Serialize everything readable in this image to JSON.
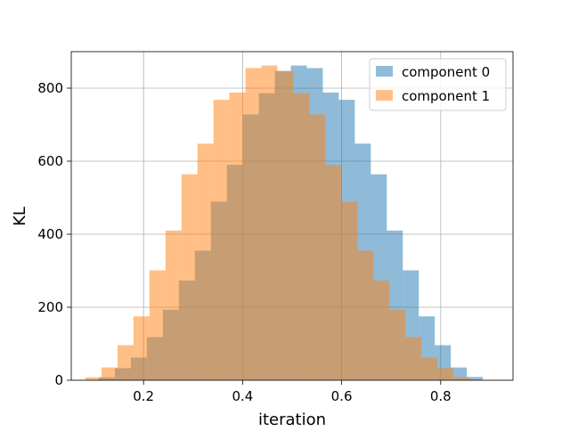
{
  "chart_data": {
    "type": "bar",
    "title": "",
    "xlabel": "iteration",
    "ylabel": "KL",
    "xlim": [
      0.054,
      0.946
    ],
    "ylim": [
      0,
      900
    ],
    "xticks": [
      0.2,
      0.4,
      0.6,
      0.8
    ],
    "xtick_labels": [
      "0.2",
      "0.4",
      "0.6",
      "0.8"
    ],
    "yticks": [
      0,
      200,
      400,
      600,
      800
    ],
    "ytick_labels": [
      "0",
      "200",
      "400",
      "600",
      "800"
    ],
    "grid": true,
    "legend_position": "top-right",
    "bin_width": 0.0323,
    "series": [
      {
        "name": "component 0",
        "color": "#1f77b4",
        "alpha": 0.5,
        "bin_edges": [
          0.1098,
          0.1421,
          0.1744,
          0.2067,
          0.239,
          0.2713,
          0.3036,
          0.3359,
          0.3682,
          0.4005,
          0.4328,
          0.4651,
          0.4974,
          0.5297,
          0.562,
          0.5943,
          0.6266,
          0.6589,
          0.6912,
          0.7235,
          0.7558,
          0.7881,
          0.8204,
          0.8527,
          0.885,
          0.9173
        ],
        "values": [
          8,
          33,
          62,
          118,
          193,
          273,
          355,
          489,
          590,
          728,
          786,
          847,
          862,
          855,
          788,
          768,
          648,
          564,
          410,
          301,
          175,
          96,
          35,
          9,
          0
        ]
      },
      {
        "name": "component 1",
        "color": "#ff7f0e",
        "alpha": 0.5,
        "bin_edges": [
          0.0827,
          0.115,
          0.1473,
          0.1796,
          0.2119,
          0.2442,
          0.2765,
          0.3088,
          0.3411,
          0.3734,
          0.4057,
          0.438,
          0.4703,
          0.5026,
          0.5349,
          0.5672,
          0.5995,
          0.6318,
          0.6641,
          0.6964,
          0.7287,
          0.761,
          0.7933,
          0.8256,
          0.8579,
          0.8902
        ],
        "values": [
          8,
          35,
          96,
          175,
          301,
          410,
          564,
          648,
          768,
          788,
          855,
          862,
          847,
          786,
          728,
          590,
          489,
          355,
          273,
          193,
          118,
          62,
          33,
          8,
          0
        ]
      }
    ]
  }
}
